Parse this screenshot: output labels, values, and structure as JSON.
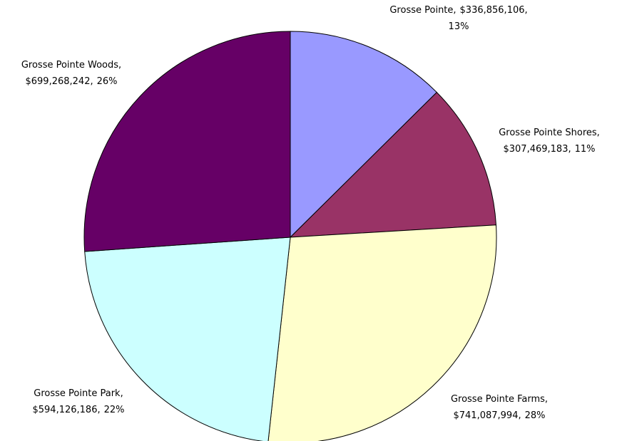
{
  "chart_data": {
    "type": "pie",
    "categories": [
      "Grosse Pointe,",
      "Grosse Pointe Shores,",
      "Grosse Pointe Farms,",
      "Grosse Pointe Park,",
      "Grosse Pointe Woods,"
    ],
    "values": [
      336856106,
      307469183,
      741087994,
      594126186,
      699268242
    ],
    "value_labels": [
      "$336,856,106,",
      "$307,469,183,",
      "$741,087,994,",
      "$594,126,186,",
      "$699,268,242,"
    ],
    "percent_labels": [
      "13%",
      "11%",
      "28%",
      "22%",
      "26%"
    ],
    "colors": [
      "#9999ff",
      "#993366",
      "#ffffcc",
      "#ccffff",
      "#660066"
    ]
  }
}
